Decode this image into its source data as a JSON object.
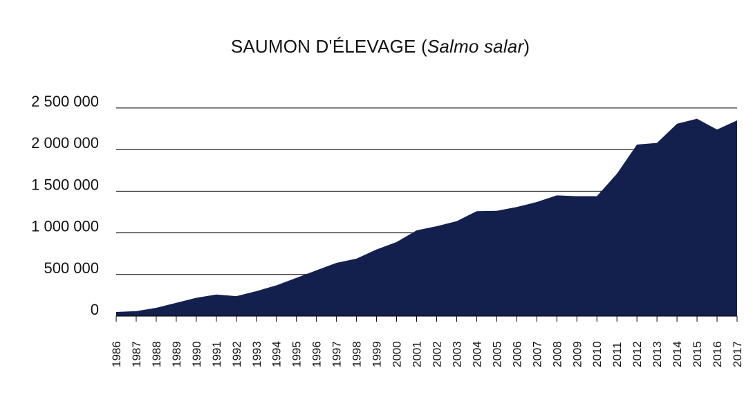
{
  "chart_data": {
    "type": "area",
    "title": "SAUMON D'ÉLEVAGE (",
    "title_italic": "Salmo salar",
    "title_suffix": ")",
    "x": [
      1986,
      1987,
      1988,
      1989,
      1990,
      1991,
      1992,
      1993,
      1994,
      1995,
      1996,
      1997,
      1998,
      1999,
      2000,
      2001,
      2002,
      2003,
      2004,
      2005,
      2006,
      2007,
      2008,
      2009,
      2010,
      2011,
      2012,
      2013,
      2014,
      2015,
      2016,
      2017
    ],
    "x_tick_labels": [
      "1986",
      "1987",
      "1988",
      "1989",
      "1990",
      "1991",
      "1992",
      "1993",
      "1994",
      "1995",
      "1996",
      "1997",
      "1998",
      "1999",
      "2000",
      "2001",
      "2002",
      "2003",
      "2004",
      "2005",
      "2006",
      "2007",
      "2008",
      "2009",
      "2010",
      "2011",
      "2012",
      "2013",
      "2014",
      "2015",
      "2016",
      "2017"
    ],
    "values": [
      50000,
      60000,
      100000,
      160000,
      220000,
      260000,
      240000,
      300000,
      370000,
      460000,
      550000,
      640000,
      690000,
      800000,
      890000,
      1030000,
      1080000,
      1140000,
      1260000,
      1265000,
      1310000,
      1370000,
      1450000,
      1440000,
      1440000,
      1710000,
      2060000,
      2080000,
      2310000,
      2370000,
      2240000,
      2350000
    ],
    "ylim": [
      0,
      2500000
    ],
    "y_ticks": [
      0,
      500000,
      1000000,
      1500000,
      2000000,
      2500000
    ],
    "y_tick_labels": [
      "0",
      "500 000",
      "1 000 000",
      "1 500 000",
      "2 000 000",
      "2 500 000"
    ],
    "grid": true,
    "fill_color": "#13204e"
  }
}
